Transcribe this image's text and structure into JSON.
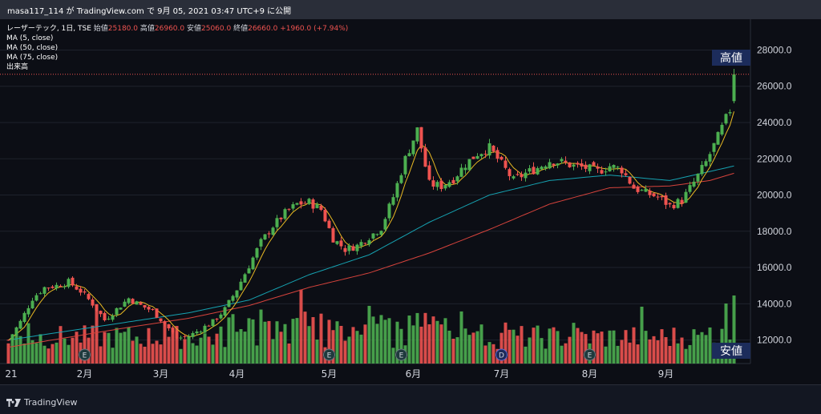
{
  "header": {
    "attribution": "masa117_114 が TradingView.com で 9月 05, 2021 03:47 UTC+9 に公開"
  },
  "legend": {
    "title": "レーザーテック, 1日, TSE",
    "open_label": "始値",
    "open": "25180.0",
    "high_label": "高値",
    "high": "26960.0",
    "low_label": "安値",
    "low": "25060.0",
    "close_label": "終値",
    "close": "26660.0",
    "change": "+1960.0 (+7.94%)",
    "ma5": "MA (5, close)",
    "ma50": "MA (50, close)",
    "ma75": "MA (75, close)",
    "volume": "出来高"
  },
  "footer": {
    "logo": "TradingView"
  },
  "chart_data": {
    "type": "candlestick",
    "y_axis": {
      "ticks": [
        12000,
        14000,
        16000,
        18000,
        20000,
        22000,
        24000,
        26000,
        28000
      ],
      "tick_labels": [
        "12000.0",
        "14000.0",
        "16000.0",
        "18000.0",
        "20000.0",
        "22000.0",
        "24000.0",
        "26000.0",
        "28000.0"
      ],
      "range": [
        10700,
        29700
      ],
      "position": "right"
    },
    "x_axis": {
      "labels": [
        "21",
        "2月",
        "3月",
        "4月",
        "5月",
        "6月",
        "7月",
        "8月",
        "9月"
      ]
    },
    "last_close": 26660,
    "period_high": 26960,
    "period_low": 12000,
    "badges": {
      "high": "高値",
      "low": "安値"
    },
    "event_markers": [
      "E",
      "E",
      "E",
      "D",
      "E"
    ],
    "colors": {
      "up": "#4caf50",
      "down": "#ef5350",
      "ma5": "#e8b923",
      "ma50": "#16a2b1",
      "ma75": "#d6433c",
      "background": "#0c0e15"
    },
    "close_path": [
      [
        0,
        12000
      ],
      [
        3,
        13000
      ],
      [
        6,
        14300
      ],
      [
        9,
        14900
      ],
      [
        12,
        15000
      ],
      [
        15,
        15200
      ],
      [
        18,
        14700
      ],
      [
        21,
        14000
      ],
      [
        24,
        13100
      ],
      [
        27,
        13700
      ],
      [
        30,
        14300
      ],
      [
        33,
        13900
      ],
      [
        36,
        13600
      ],
      [
        39,
        12900
      ],
      [
        42,
        12100
      ],
      [
        45,
        12200
      ],
      [
        48,
        12600
      ],
      [
        51,
        13000
      ],
      [
        54,
        13700
      ],
      [
        57,
        14800
      ],
      [
        60,
        16100
      ],
      [
        63,
        17400
      ],
      [
        66,
        18300
      ],
      [
        69,
        19000
      ],
      [
        72,
        19500
      ],
      [
        75,
        19600
      ],
      [
        78,
        19200
      ],
      [
        81,
        17600
      ],
      [
        84,
        17000
      ],
      [
        87,
        17200
      ],
      [
        90,
        17700
      ],
      [
        93,
        18200
      ],
      [
        96,
        19900
      ],
      [
        99,
        22000
      ],
      [
        102,
        23600
      ],
      [
        105,
        20600
      ],
      [
        108,
        20500
      ],
      [
        111,
        20900
      ],
      [
        114,
        21700
      ],
      [
        117,
        22300
      ],
      [
        120,
        22600
      ],
      [
        123,
        21700
      ],
      [
        126,
        20800
      ],
      [
        129,
        21200
      ],
      [
        132,
        21500
      ],
      [
        135,
        21900
      ],
      [
        138,
        21800
      ],
      [
        141,
        21600
      ],
      [
        144,
        21500
      ],
      [
        147,
        21300
      ],
      [
        150,
        21600
      ],
      [
        153,
        21400
      ],
      [
        156,
        20400
      ],
      [
        159,
        20100
      ],
      [
        162,
        19900
      ],
      [
        165,
        19400
      ],
      [
        168,
        19700
      ],
      [
        171,
        20700
      ],
      [
        174,
        21800
      ],
      [
        177,
        23200
      ],
      [
        180,
        24700
      ],
      [
        181,
        26660
      ]
    ],
    "ma50_path": [
      [
        0,
        12000
      ],
      [
        30,
        13000
      ],
      [
        45,
        13500
      ],
      [
        60,
        14200
      ],
      [
        75,
        15600
      ],
      [
        90,
        16700
      ],
      [
        105,
        18500
      ],
      [
        120,
        20000
      ],
      [
        135,
        20800
      ],
      [
        150,
        21100
      ],
      [
        165,
        20800
      ],
      [
        175,
        21300
      ],
      [
        181,
        21600
      ]
    ],
    "ma75_path": [
      [
        0,
        11600
      ],
      [
        30,
        12700
      ],
      [
        45,
        13200
      ],
      [
        60,
        13900
      ],
      [
        75,
        14900
      ],
      [
        90,
        15700
      ],
      [
        105,
        16800
      ],
      [
        120,
        18100
      ],
      [
        135,
        19500
      ],
      [
        150,
        20400
      ],
      [
        165,
        20500
      ],
      [
        175,
        20800
      ],
      [
        181,
        21200
      ]
    ]
  }
}
